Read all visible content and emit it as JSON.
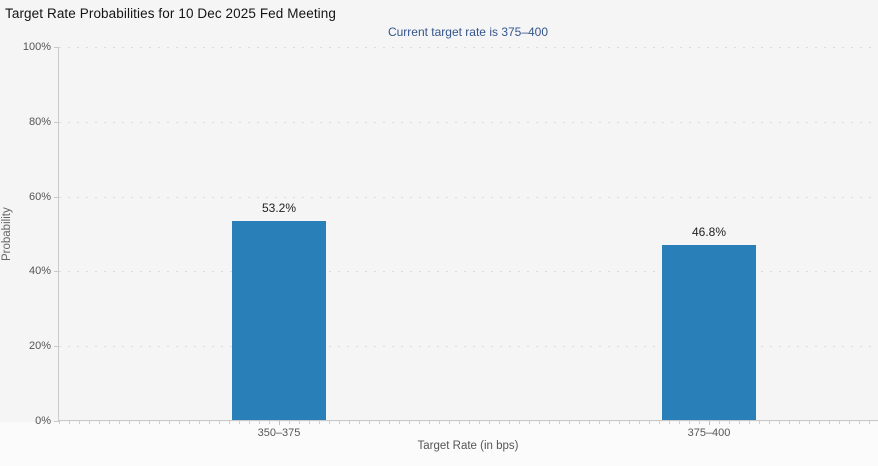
{
  "chart_data": {
    "type": "bar",
    "title": "Target Rate Probabilities for 10 Dec 2025 Fed Meeting",
    "subtitle": "Current target rate is 375–400",
    "categories": [
      "350–375",
      "375–400"
    ],
    "values": [
      53.2,
      46.8
    ],
    "value_labels": [
      "53.2%",
      "46.8%"
    ],
    "xlabel": "Target Rate (in bps)",
    "ylabel": "Probability",
    "ylim": [
      0,
      100
    ],
    "y_ticks": [
      0,
      20,
      40,
      60,
      80,
      100
    ],
    "y_tick_labels": [
      "0%",
      "20%",
      "40%",
      "60%",
      "80%",
      "100%"
    ],
    "grid": "horizontal-dotted",
    "legend": "none",
    "bar_color": "#2980b9"
  },
  "colors": {
    "background": "#f5f5f5",
    "below_axis_background": "#fbfbfb",
    "bar": "#2980b9",
    "title": "#141414",
    "subtitle": "#34558b",
    "axis_line": "#c9c9c9",
    "gridline": "#dcdcdc",
    "tick_label": "#555555",
    "axis_title": "#666666",
    "data_label": "#222222"
  }
}
